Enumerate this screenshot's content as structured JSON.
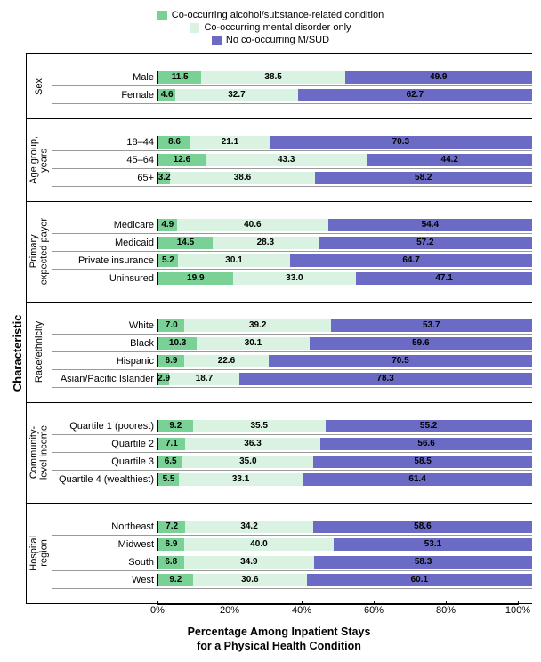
{
  "legend": {
    "items": [
      {
        "label": "Co-occurring alcohol/substance-related condition",
        "color": "#79d196"
      },
      {
        "label": "Co-occurring mental disorder only",
        "color": "#d9f2e1"
      },
      {
        "label": "No co-occurring M/SUD",
        "color": "#6b6bc6"
      }
    ]
  },
  "yAxisTitle": "Characteristic",
  "xAxisTitle": "Percentage Among Inpatient Stays\nfor a Physical Health Condition",
  "xTicks": [
    "0%",
    "20%",
    "40%",
    "60%",
    "80%",
    "100%"
  ],
  "xTickPositions": [
    0,
    20,
    40,
    60,
    80,
    100
  ],
  "colors": {
    "seg1": "#79d196",
    "seg2": "#d9f2e1",
    "seg3": "#6b6bc6",
    "text_on_dark": "#000000"
  },
  "chartWidth": 405,
  "groups": [
    {
      "name": "Sex",
      "rows": [
        {
          "label": "Male",
          "v": [
            11.5,
            38.5,
            49.9
          ]
        },
        {
          "label": "Female",
          "v": [
            4.6,
            32.7,
            62.7
          ]
        }
      ]
    },
    {
      "name": "Age group,\nyears",
      "rows": [
        {
          "label": "18–44",
          "v": [
            8.6,
            21.1,
            70.3
          ]
        },
        {
          "label": "45–64",
          "v": [
            12.6,
            43.3,
            44.2
          ]
        },
        {
          "label": "65+",
          "v": [
            3.2,
            38.6,
            58.2
          ]
        }
      ]
    },
    {
      "name": "Primary\nexpected payer",
      "rows": [
        {
          "label": "Medicare",
          "v": [
            4.9,
            40.6,
            54.4
          ]
        },
        {
          "label": "Medicaid",
          "v": [
            14.5,
            28.3,
            57.2
          ]
        },
        {
          "label": "Private insurance",
          "v": [
            5.2,
            30.1,
            64.7
          ]
        },
        {
          "label": "Uninsured",
          "v": [
            19.9,
            33.0,
            47.1
          ]
        }
      ]
    },
    {
      "name": "Race/ethnicity",
      "rows": [
        {
          "label": "White",
          "v": [
            7.0,
            39.2,
            53.7
          ]
        },
        {
          "label": "Black",
          "v": [
            10.3,
            30.1,
            59.6
          ]
        },
        {
          "label": "Hispanic",
          "v": [
            6.9,
            22.6,
            70.5
          ]
        },
        {
          "label": "Asian/Pacific Islander",
          "v": [
            2.9,
            18.7,
            78.3
          ]
        }
      ]
    },
    {
      "name": "Community-\nlevel income",
      "rows": [
        {
          "label": "Quartile 1 (poorest)",
          "v": [
            9.2,
            35.5,
            55.2
          ]
        },
        {
          "label": "Quartile 2",
          "v": [
            7.1,
            36.3,
            56.6
          ]
        },
        {
          "label": "Quartile 3",
          "v": [
            6.5,
            35.0,
            58.5
          ]
        },
        {
          "label": "Quartile 4 (wealthiest)",
          "v": [
            5.5,
            33.1,
            61.4
          ]
        }
      ]
    },
    {
      "name": "Hospital\nregion",
      "rows": [
        {
          "label": "Northeast",
          "v": [
            7.2,
            34.2,
            58.6
          ]
        },
        {
          "label": "Midwest",
          "v": [
            6.9,
            40.0,
            53.1
          ]
        },
        {
          "label": "South",
          "v": [
            6.8,
            34.9,
            58.3
          ]
        },
        {
          "label": "West",
          "v": [
            9.2,
            30.6,
            60.1
          ]
        }
      ]
    }
  ]
}
